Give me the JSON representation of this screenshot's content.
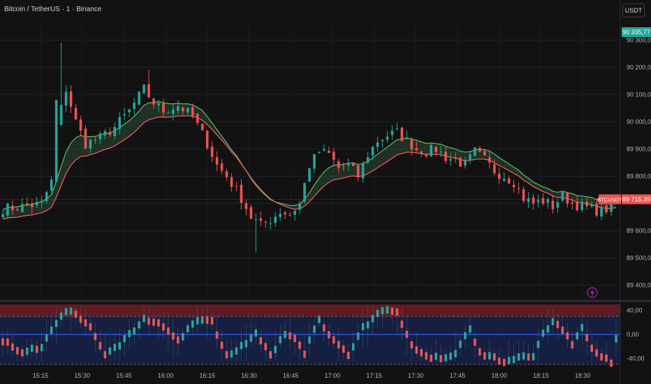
{
  "header": {
    "title": "Bitcoin / TetherUS · 1 · Binance",
    "currency_button": "USDT"
  },
  "colors": {
    "background": "#121212",
    "up": "#26a69a",
    "down": "#ef5350",
    "ribbon_upper": "#5fbf6f",
    "ribbon_lower": "#ff5c5c",
    "osc_mid": "#2962ff",
    "accent_purple": "#9c27b0"
  },
  "chart_data": [
    {
      "type": "candlestick",
      "title": "Bitcoin / TetherUS · 1 · Binance",
      "x_ticks": [
        "15:15",
        "15:30",
        "15:45",
        "16:00",
        "16:15",
        "16:30",
        "16:45",
        "17:00",
        "17:15",
        "17:30",
        "17:45",
        "18:00",
        "18:15",
        "18:30"
      ],
      "y_ticks": [
        "90 300,00",
        "90 200,00",
        "90 100,00",
        "90 000,00",
        "89 900,00",
        "89 800,00",
        "89 600,00",
        "89 500,00",
        "89 400,00"
      ],
      "ylim": [
        89350,
        90370
      ],
      "last_price_high": "90 335,77",
      "symbol_label": "BTCUSDT",
      "last_price": "89 715,39",
      "close_path": [
        [
          0,
          89680
        ],
        [
          5,
          89690
        ],
        [
          8,
          89700
        ],
        [
          10,
          89780
        ],
        [
          11,
          89980
        ],
        [
          13,
          90120
        ],
        [
          15,
          90000
        ],
        [
          17,
          89920
        ],
        [
          20,
          89940
        ],
        [
          23,
          89980
        ],
        [
          26,
          90040
        ],
        [
          29,
          90120
        ],
        [
          31,
          90070
        ],
        [
          33,
          90040
        ],
        [
          36,
          90060
        ],
        [
          39,
          90020
        ],
        [
          42,
          89920
        ],
        [
          44,
          89840
        ],
        [
          46,
          89800
        ],
        [
          49,
          89720
        ],
        [
          51,
          89650
        ],
        [
          53,
          89620
        ],
        [
          55,
          89640
        ],
        [
          57,
          89670
        ],
        [
          59,
          89660
        ],
        [
          61,
          89700
        ],
        [
          63,
          89840
        ],
        [
          65,
          89890
        ],
        [
          67,
          89880
        ],
        [
          69,
          89830
        ],
        [
          71,
          89840
        ],
        [
          73,
          89800
        ],
        [
          75,
          89880
        ],
        [
          77,
          89930
        ],
        [
          79,
          89950
        ],
        [
          81,
          89960
        ],
        [
          83,
          89930
        ],
        [
          85,
          89900
        ],
        [
          87,
          89890
        ],
        [
          89,
          89900
        ],
        [
          91,
          89870
        ],
        [
          93,
          89860
        ],
        [
          95,
          89840
        ],
        [
          97,
          89890
        ],
        [
          99,
          89860
        ],
        [
          101,
          89820
        ],
        [
          103,
          89800
        ],
        [
          105,
          89780
        ],
        [
          107,
          89720
        ],
        [
          109,
          89700
        ],
        [
          111,
          89710
        ],
        [
          113,
          89690
        ],
        [
          115,
          89730
        ],
        [
          117,
          89700
        ],
        [
          119,
          89690
        ],
        [
          121,
          89680
        ],
        [
          123,
          89670
        ],
        [
          125,
          89690
        ],
        [
          126,
          89715
        ]
      ],
      "candle_count": 127
    },
    {
      "type": "oscillator",
      "y_ticks": [
        "40,00",
        "0,00",
        "-40,00"
      ],
      "ylim": [
        -50,
        50
      ],
      "upper_band": [
        30,
        50
      ],
      "lower_band": [
        -50,
        -30
      ],
      "osc_path": [
        [
          0,
          -10
        ],
        [
          4,
          -30
        ],
        [
          8,
          -20
        ],
        [
          12,
          30
        ],
        [
          14,
          40
        ],
        [
          18,
          10
        ],
        [
          21,
          -35
        ],
        [
          25,
          -10
        ],
        [
          29,
          25
        ],
        [
          32,
          20
        ],
        [
          36,
          -10
        ],
        [
          40,
          25
        ],
        [
          43,
          20
        ],
        [
          46,
          -35
        ],
        [
          49,
          -20
        ],
        [
          52,
          0
        ],
        [
          55,
          -35
        ],
        [
          58,
          0
        ],
        [
          60,
          -5
        ],
        [
          62,
          -30
        ],
        [
          65,
          25
        ],
        [
          68,
          -10
        ],
        [
          71,
          -35
        ],
        [
          74,
          10
        ],
        [
          78,
          40
        ],
        [
          81,
          40
        ],
        [
          84,
          -20
        ],
        [
          87,
          -35
        ],
        [
          90,
          -40
        ],
        [
          93,
          -30
        ],
        [
          96,
          10
        ],
        [
          98,
          -30
        ],
        [
          101,
          -40
        ],
        [
          103,
          -45
        ],
        [
          106,
          -40
        ],
        [
          109,
          -35
        ],
        [
          111,
          0
        ],
        [
          113,
          20
        ],
        [
          115,
          10
        ],
        [
          117,
          -15
        ],
        [
          119,
          10
        ],
        [
          121,
          -25
        ],
        [
          123,
          -35
        ],
        [
          125,
          -45
        ],
        [
          126,
          -10
        ]
      ]
    }
  ]
}
